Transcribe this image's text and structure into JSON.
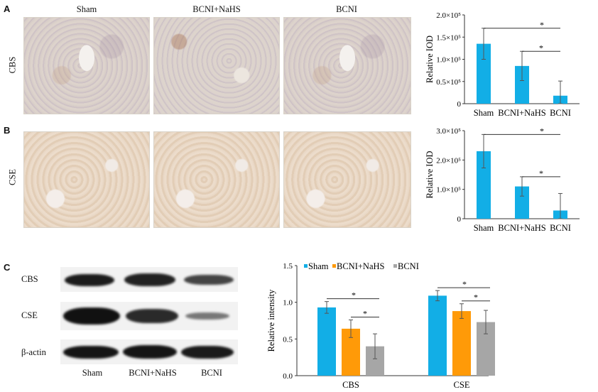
{
  "panel_letters": {
    "a": "A",
    "b": "B",
    "c": "C"
  },
  "micro_columns": [
    "Sham",
    "BCNI+NaHS",
    "BCNI"
  ],
  "micro_rows": [
    "CBS",
    "CSE"
  ],
  "blot": {
    "rows": [
      "CBS",
      "CSE",
      "β-actin"
    ],
    "columns": [
      "Sham",
      "BCNI+NaHS",
      "BCNI"
    ]
  },
  "colors": {
    "sham": "#12aee6",
    "nahs": "#ff9a08",
    "bcni": "#a6a6a6"
  },
  "chart_data": [
    {
      "type": "bar",
      "categories": [
        "Sham",
        "BCNI+NaHS",
        "BCNI"
      ],
      "values": [
        135000,
        85000,
        18000
      ],
      "error": [
        35000,
        33000,
        33000
      ],
      "ylabel": "Relative IOD",
      "ylim": [
        0,
        200000
      ],
      "yticks": [
        "0",
        "0.5×10⁵",
        "1.0×10⁵",
        "1.5×10⁵",
        "2.0×10⁵"
      ],
      "significance": [
        "*",
        "*"
      ]
    },
    {
      "type": "bar",
      "categories": [
        "Sham",
        "BCNI+NaHS",
        "BCNI"
      ],
      "values": [
        230000,
        110000,
        28000
      ],
      "error": [
        57000,
        33000,
        58000
      ],
      "ylabel": "Relative IOD",
      "ylim": [
        0,
        300000
      ],
      "yticks": [
        "0",
        "1.0×10⁵",
        "2.0×10⁵",
        "3.0×10⁵"
      ],
      "significance": [
        "*",
        "*"
      ]
    },
    {
      "type": "bar",
      "categories": [
        "CBS",
        "CSE"
      ],
      "series": [
        {
          "name": "Sham",
          "values": [
            0.93,
            1.09
          ],
          "error": [
            0.08,
            0.07
          ]
        },
        {
          "name": "BCNI+NaHS",
          "values": [
            0.64,
            0.88
          ],
          "error": [
            0.12,
            0.1
          ]
        },
        {
          "name": "BCNI",
          "values": [
            0.4,
            0.73
          ],
          "error": [
            0.17,
            0.16
          ]
        }
      ],
      "ylabel": "Relative intensity",
      "ylim": [
        0,
        1.5
      ],
      "yticks": [
        "0.0",
        "0.5",
        "1.0",
        "1.5"
      ],
      "significance": [
        "*",
        "*",
        "*",
        "*"
      ]
    }
  ]
}
